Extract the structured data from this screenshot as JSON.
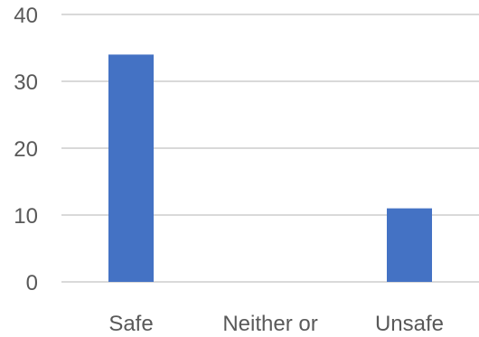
{
  "chart_data": {
    "type": "bar",
    "categories": [
      "Safe",
      "Neither or",
      "Unsafe"
    ],
    "values": [
      34,
      0,
      11
    ],
    "ylim": [
      0,
      40
    ],
    "yticks": [
      0,
      10,
      20,
      30,
      40
    ],
    "grid": true,
    "legend": "none",
    "colors": {
      "bar": "#4472c4",
      "grid": "#d9d9d9",
      "text": "#595959"
    }
  }
}
